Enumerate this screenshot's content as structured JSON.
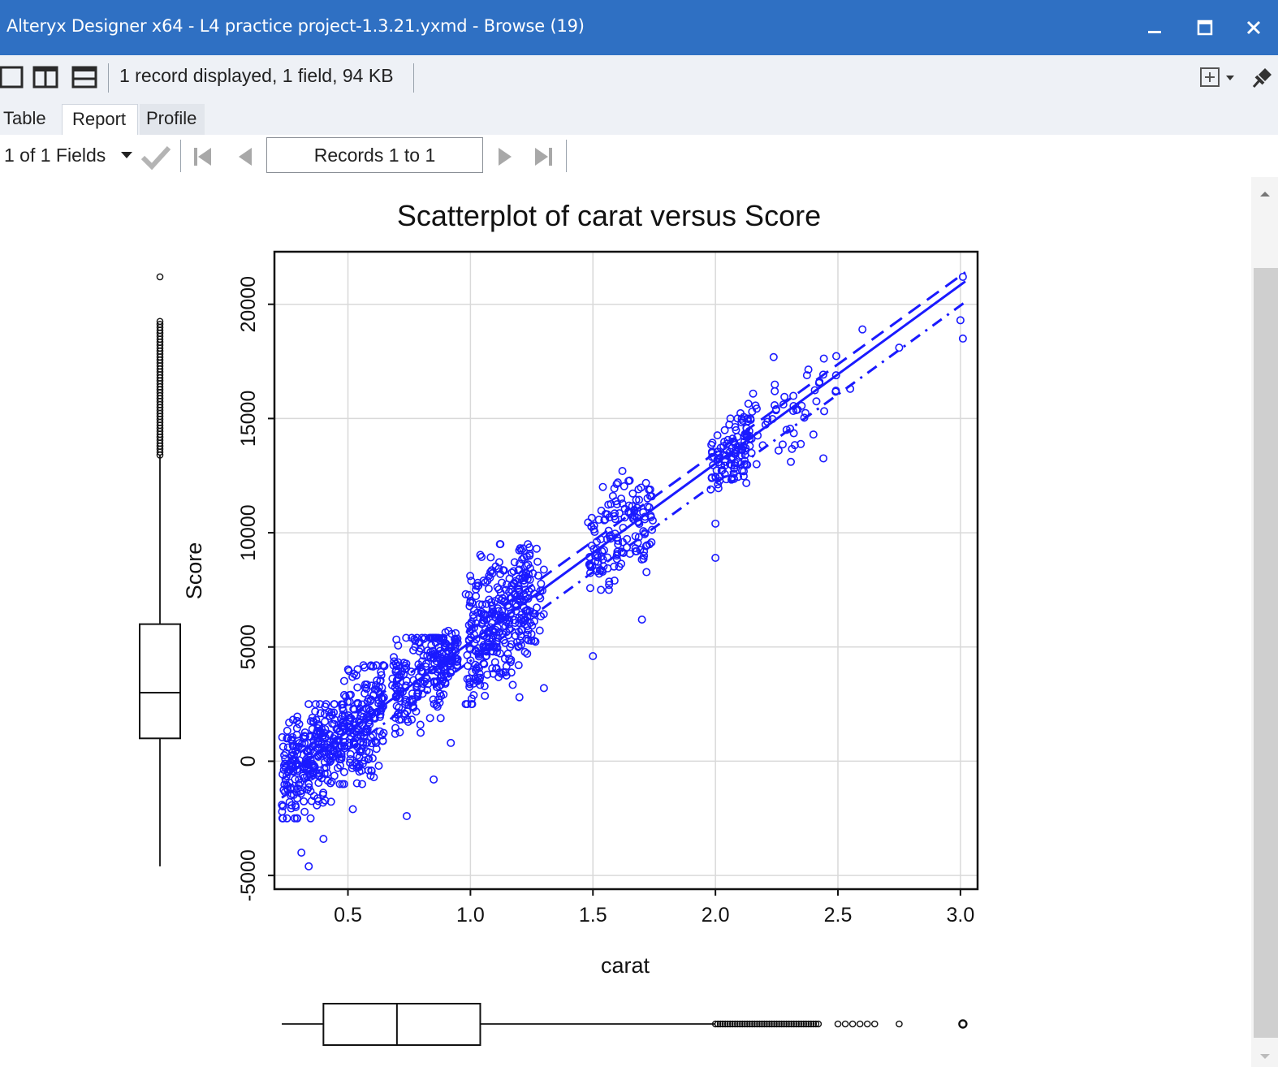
{
  "window": {
    "title": "Alteryx Designer x64 - L4 practice project-1.3.21.yxmd - Browse (19)",
    "minimize_icon": "minimize-icon",
    "maximize_icon": "maximize-icon",
    "close_icon": "close-icon"
  },
  "toolbar": {
    "status": "1 record displayed, 1 field, 94 KB",
    "layout_icons": [
      "single-pane-icon",
      "vertical-split-icon",
      "horizontal-split-icon"
    ],
    "right_icons": [
      "add-dropdown-icon",
      "pin-icon"
    ]
  },
  "tabs": [
    {
      "label": "Table",
      "active": false
    },
    {
      "label": "Report",
      "active": true
    },
    {
      "label": "Profile",
      "active": false
    }
  ],
  "navbar": {
    "fields_selector": "1 of 1 Fields",
    "records": "Records 1 to 1"
  },
  "chart_data": {
    "type": "scatter",
    "title": "Scatterplot of carat versus Score",
    "xlabel": "carat",
    "ylabel": "Score",
    "xlim": [
      0.2,
      3.07
    ],
    "ylim": [
      -5600,
      22300
    ],
    "xticks": [
      "0.5",
      "1.0",
      "1.5",
      "2.0",
      "2.5",
      "3.0"
    ],
    "xtick_values": [
      0.5,
      1.0,
      1.5,
      2.0,
      2.5,
      3.0
    ],
    "yticks": [
      "-5000",
      "0",
      "5000",
      "10000",
      "15000",
      "20000"
    ],
    "ytick_values": [
      -5000,
      0,
      5000,
      10000,
      15000,
      20000
    ],
    "grid": true,
    "point_color": "#1a1aff",
    "regression": {
      "fit": {
        "x": [
          0.23,
          3.02
        ],
        "y": [
          -800,
          21000
        ]
      },
      "upper": {
        "x": [
          0.23,
          3.02
        ],
        "y": [
          -200,
          21400
        ]
      },
      "lower": {
        "x": [
          0.23,
          3.02
        ],
        "y": [
          -1600,
          20100
        ]
      }
    },
    "clusters": [
      {
        "x": [
          0.23,
          0.45
        ],
        "y": [
          -2500,
          2500
        ],
        "n": 260
      },
      {
        "x": [
          0.45,
          0.65
        ],
        "y": [
          -1000,
          4200
        ],
        "n": 220
      },
      {
        "x": [
          0.68,
          0.9
        ],
        "y": [
          500,
          5400
        ],
        "n": 180
      },
      {
        "x": [
          0.88,
          0.95
        ],
        "y": [
          3500,
          6200
        ],
        "n": 60
      },
      {
        "x": [
          0.98,
          1.25
        ],
        "y": [
          2500,
          9500
        ],
        "n": 260
      },
      {
        "x": [
          1.05,
          1.3
        ],
        "y": [
          5000,
          9800
        ],
        "n": 90
      },
      {
        "x": [
          1.48,
          1.75
        ],
        "y": [
          7500,
          12800
        ],
        "n": 150
      },
      {
        "x": [
          1.98,
          2.15
        ],
        "y": [
          11500,
          15000
        ],
        "n": 110
      },
      {
        "x": [
          2.1,
          2.5
        ],
        "y": [
          13000,
          18500
        ],
        "n": 60
      }
    ],
    "extra_points": [
      {
        "x": 0.31,
        "y": -4000
      },
      {
        "x": 0.34,
        "y": -4600
      },
      {
        "x": 0.4,
        "y": -3400
      },
      {
        "x": 0.52,
        "y": -2100
      },
      {
        "x": 0.74,
        "y": -2400
      },
      {
        "x": 0.85,
        "y": -800
      },
      {
        "x": 0.92,
        "y": 800
      },
      {
        "x": 1.2,
        "y": 2800
      },
      {
        "x": 1.3,
        "y": 3200
      },
      {
        "x": 1.5,
        "y": 4600
      },
      {
        "x": 1.7,
        "y": 6200
      },
      {
        "x": 2.0,
        "y": 8900
      },
      {
        "x": 2.0,
        "y": 10400
      },
      {
        "x": 2.4,
        "y": 14300
      },
      {
        "x": 2.55,
        "y": 16300
      },
      {
        "x": 2.6,
        "y": 18900
      },
      {
        "x": 2.75,
        "y": 18100
      },
      {
        "x": 3.0,
        "y": 19300
      },
      {
        "x": 3.01,
        "y": 18500
      },
      {
        "x": 3.01,
        "y": 21200
      }
    ],
    "score_boxplot": {
      "whisker_low": -4600,
      "q1": 1000,
      "median": 3000,
      "q3": 6000,
      "whisker_high": 13400,
      "outliers_range": [
        13400,
        19300
      ],
      "outlier_max": 21200
    },
    "carat_boxplot": {
      "whisker_low": 0.23,
      "q1": 0.4,
      "median": 0.7,
      "q3": 1.04,
      "whisker_high": 2.0,
      "outliers_range": [
        2.0,
        2.42
      ],
      "outliers_sparse": [
        2.5,
        2.53,
        2.56,
        2.59,
        2.62,
        2.65,
        2.75
      ],
      "outlier_max": 3.01
    }
  }
}
